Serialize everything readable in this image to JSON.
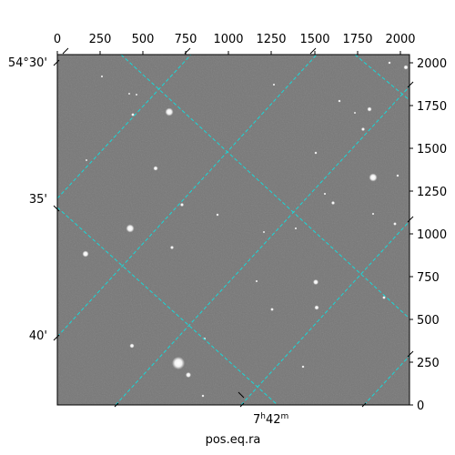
{
  "image": {
    "description_colors": {
      "sky": "#7a7a7a",
      "grid": "#18d8d8",
      "frame": "#000000"
    },
    "x_pixel_ticks": [
      "0",
      "250",
      "500",
      "750",
      "1000",
      "1250",
      "1500",
      "1750",
      "2000"
    ],
    "y_pixel_ticks": [
      "0",
      "250",
      "500",
      "750",
      "1000",
      "1250",
      "1500",
      "1750",
      "2000"
    ],
    "dec_ticks": [
      "54°30'",
      "35'",
      "40'"
    ],
    "ra_label_main": "7",
    "ra_label_h": "h",
    "ra_label_min": "42",
    "ra_label_m": "m",
    "xlabel": "pos.eq.ra"
  }
}
